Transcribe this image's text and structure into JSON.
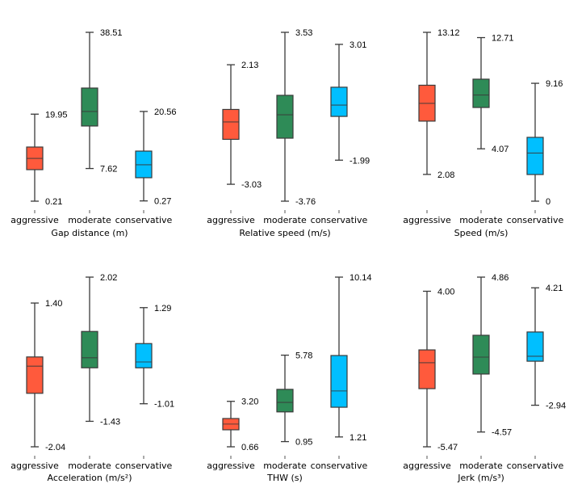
{
  "chart_data": [
    {
      "type": "box",
      "title": "",
      "xlabel": "Gap distance (m)",
      "ylabel": "",
      "categories": [
        "aggressive",
        "moderate",
        "conservative"
      ],
      "series": [
        {
          "name": "aggressive",
          "color": "#FF5A3C",
          "whisker_low": 0.21,
          "q1": 7.36,
          "median": 9.92,
          "q3": 12.49,
          "whisker_high": 19.95,
          "low_label": "0.21",
          "high_label": "19.95"
        },
        {
          "name": "moderate",
          "color": "#2E8B57",
          "whisker_low": 7.62,
          "q1": 17.26,
          "median": 20.56,
          "q3": 25.87,
          "whisker_high": 38.51,
          "low_label": "7.62",
          "high_label": "38.51"
        },
        {
          "name": "conservative",
          "color": "#00BFFF",
          "whisker_low": 0.27,
          "q1": 5.53,
          "median": 8.46,
          "q3": 11.57,
          "whisker_high": 20.56,
          "low_label": "0.27",
          "high_label": "20.56"
        }
      ],
      "ylim": [
        0.21,
        38.51
      ],
      "grid": false
    },
    {
      "type": "box",
      "title": "",
      "xlabel": "Relative speed (m/s)",
      "ylabel": "",
      "categories": [
        "aggressive",
        "moderate",
        "conservative"
      ],
      "series": [
        {
          "name": "aggressive",
          "color": "#FF5A3C",
          "whisker_low": -3.03,
          "q1": -1.09,
          "median": -0.34,
          "q3": 0.2,
          "whisker_high": 2.13,
          "low_label": "-3.03",
          "high_label": "2.13"
        },
        {
          "name": "moderate",
          "color": "#2E8B57",
          "whisker_low": -3.76,
          "q1": -1.04,
          "median": -0.03,
          "q3": 0.81,
          "whisker_high": 3.53,
          "low_label": "-3.76",
          "high_label": "3.53"
        },
        {
          "name": "conservative",
          "color": "#00BFFF",
          "whisker_low": -1.99,
          "q1": -0.1,
          "median": 0.39,
          "q3": 1.16,
          "whisker_high": 3.01,
          "low_label": "-1.99",
          "high_label": "3.01"
        }
      ],
      "ylim": [
        -3.76,
        3.53
      ],
      "grid": false
    },
    {
      "type": "box",
      "title": "",
      "xlabel": "Speed (m/s)",
      "ylabel": "",
      "categories": [
        "aggressive",
        "moderate",
        "conservative"
      ],
      "series": [
        {
          "name": "aggressive",
          "color": "#FF5A3C",
          "whisker_low": 2.08,
          "q1": 6.22,
          "median": 7.6,
          "q3": 9.01,
          "whisker_high": 13.12,
          "low_label": "2.08",
          "high_label": "13.12"
        },
        {
          "name": "moderate",
          "color": "#2E8B57",
          "whisker_low": 4.07,
          "q1": 7.28,
          "median": 8.25,
          "q3": 9.48,
          "whisker_high": 12.71,
          "low_label": "4.07",
          "high_label": "12.71"
        },
        {
          "name": "conservative",
          "color": "#00BFFF",
          "whisker_low": 0,
          "q1": 2.07,
          "median": 3.74,
          "q3": 4.96,
          "whisker_high": 9.16,
          "low_label": "0",
          "high_label": "9.16"
        }
      ],
      "ylim": [
        0,
        13.12
      ],
      "grid": false
    },
    {
      "type": "box",
      "title": "",
      "xlabel": "Acceleration (m/s²)",
      "ylabel": "",
      "categories": [
        "aggressive",
        "moderate",
        "conservative"
      ],
      "series": [
        {
          "name": "aggressive",
          "color": "#FF5A3C",
          "whisker_low": -2.04,
          "q1": -0.76,
          "median": -0.11,
          "q3": 0.11,
          "whisker_high": 1.4,
          "low_label": "-2.04",
          "high_label": "1.40"
        },
        {
          "name": "moderate",
          "color": "#2E8B57",
          "whisker_low": -1.43,
          "q1": -0.15,
          "median": 0.09,
          "q3": 0.72,
          "whisker_high": 2.02,
          "low_label": "-1.43",
          "high_label": "2.02"
        },
        {
          "name": "conservative",
          "color": "#00BFFF",
          "whisker_low": -1.01,
          "q1": -0.15,
          "median": -0.01,
          "q3": 0.43,
          "whisker_high": 1.29,
          "low_label": "-1.01",
          "high_label": "1.29"
        }
      ],
      "ylim": [
        -2.04,
        2.02
      ],
      "grid": false
    },
    {
      "type": "box",
      "title": "",
      "xlabel": "THW (s)",
      "ylabel": "",
      "categories": [
        "aggressive",
        "moderate",
        "conservative"
      ],
      "series": [
        {
          "name": "aggressive",
          "color": "#FF5A3C",
          "whisker_low": 0.66,
          "q1": 1.61,
          "median": 1.93,
          "q3": 2.24,
          "whisker_high": 3.2,
          "low_label": "0.66",
          "high_label": "3.20"
        },
        {
          "name": "moderate",
          "color": "#2E8B57",
          "whisker_low": 0.95,
          "q1": 2.61,
          "median": 3.14,
          "q3": 3.87,
          "whisker_high": 5.78,
          "low_label": "0.95",
          "high_label": "5.78"
        },
        {
          "name": "conservative",
          "color": "#00BFFF",
          "whisker_low": 1.21,
          "q1": 2.87,
          "median": 3.78,
          "q3": 5.76,
          "whisker_high": 10.14,
          "low_label": "1.21",
          "high_label": "10.14"
        }
      ],
      "ylim": [
        0.66,
        10.14
      ],
      "grid": false
    },
    {
      "type": "box",
      "title": "",
      "xlabel": "Jerk (m/s³)",
      "ylabel": "",
      "categories": [
        "aggressive",
        "moderate",
        "conservative"
      ],
      "series": [
        {
          "name": "aggressive",
          "color": "#FF5A3C",
          "whisker_low": -5.47,
          "q1": -1.93,
          "median": -0.35,
          "q3": 0.43,
          "whisker_high": 4.0,
          "low_label": "-5.47",
          "high_label": "4.00"
        },
        {
          "name": "moderate",
          "color": "#2E8B57",
          "whisker_low": -4.57,
          "q1": -1.04,
          "median": -0.01,
          "q3": 1.32,
          "whisker_high": 4.86,
          "low_label": "-4.57",
          "high_label": "4.86"
        },
        {
          "name": "conservative",
          "color": "#00BFFF",
          "whisker_low": -2.94,
          "q1": -0.26,
          "median": 0.04,
          "q3": 1.52,
          "whisker_high": 4.21,
          "low_label": "-2.94",
          "high_label": "4.21"
        }
      ],
      "ylim": [
        -5.47,
        4.86
      ],
      "grid": false
    }
  ]
}
